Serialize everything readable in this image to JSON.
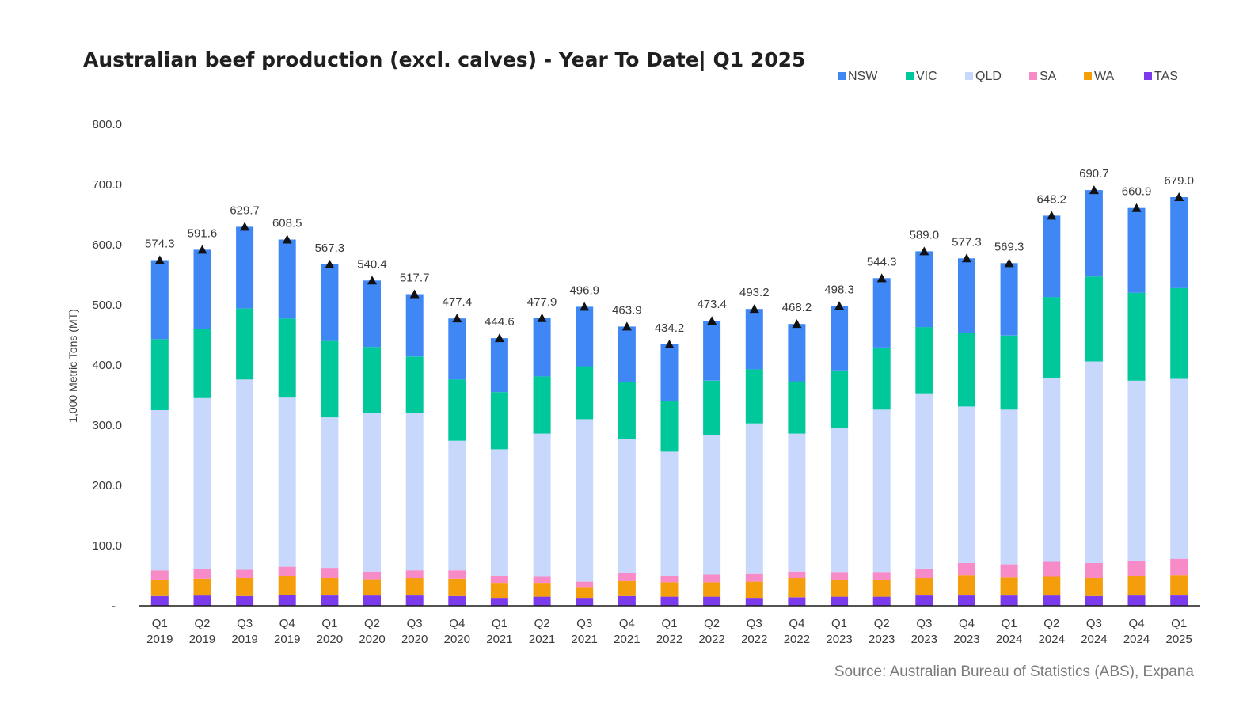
{
  "chart_data": {
    "type": "bar",
    "stacked": true,
    "title": "Australian  beef production (excl. calves)  - Year To Date| Q1 2025",
    "ylabel": "1,000 Metric Tons (MT)",
    "ylim": [
      0,
      800
    ],
    "yticks": [
      "-",
      "100.0",
      "200.0",
      "300.0",
      "400.0",
      "500.0",
      "600.0",
      "700.0",
      "800.0"
    ],
    "grid": false,
    "legend_position": "top-right",
    "categories": [
      [
        "Q1",
        "2019"
      ],
      [
        "Q2",
        "2019"
      ],
      [
        "Q3",
        "2019"
      ],
      [
        "Q4",
        "2019"
      ],
      [
        "Q1",
        "2020"
      ],
      [
        "Q2",
        "2020"
      ],
      [
        "Q3",
        "2020"
      ],
      [
        "Q4",
        "2020"
      ],
      [
        "Q1",
        "2021"
      ],
      [
        "Q2",
        "2021"
      ],
      [
        "Q3",
        "2021"
      ],
      [
        "Q4",
        "2021"
      ],
      [
        "Q1",
        "2022"
      ],
      [
        "Q2",
        "2022"
      ],
      [
        "Q3",
        "2022"
      ],
      [
        "Q4",
        "2022"
      ],
      [
        "Q1",
        "2023"
      ],
      [
        "Q2",
        "2023"
      ],
      [
        "Q3",
        "2023"
      ],
      [
        "Q4",
        "2023"
      ],
      [
        "Q1",
        "2024"
      ],
      [
        "Q2",
        "2024"
      ],
      [
        "Q3",
        "2024"
      ],
      [
        "Q4",
        "2024"
      ],
      [
        "Q1",
        "2025"
      ]
    ],
    "series": [
      {
        "name": "TAS",
        "color": "#7c3aed",
        "values": [
          16,
          17,
          16,
          18,
          17,
          17,
          17,
          16,
          13,
          15,
          13,
          16,
          15,
          15,
          13,
          14,
          15,
          15,
          17,
          17,
          17,
          17,
          16,
          17,
          17
        ]
      },
      {
        "name": "WA",
        "color": "#f59e0b",
        "values": [
          27,
          28,
          30,
          31,
          29,
          27,
          29,
          29,
          25,
          23,
          18,
          25,
          24,
          24,
          27,
          32,
          28,
          28,
          29,
          34,
          30,
          31,
          30,
          33,
          34
        ]
      },
      {
        "name": "SA",
        "color": "#f68bc7",
        "values": [
          16,
          16,
          14,
          16,
          17,
          13,
          13,
          14,
          12,
          10,
          9,
          13,
          11,
          13,
          13,
          11,
          12,
          12,
          16,
          20,
          22,
          25,
          25,
          24,
          27
        ]
      },
      {
        "name": "QLD",
        "color": "#c7d8fc",
        "values": [
          266,
          284,
          316,
          281,
          250,
          263,
          262,
          215,
          210,
          238,
          270,
          223,
          206,
          231,
          250,
          229,
          241,
          271,
          291,
          260,
          257,
          305,
          335,
          300,
          299
        ]
      },
      {
        "name": "VIC",
        "color": "#00c89b",
        "values": [
          118,
          115,
          118,
          131,
          127,
          110,
          93,
          102,
          95,
          95,
          88,
          94,
          84,
          91,
          90,
          87,
          95,
          103,
          110,
          122,
          123,
          135,
          141,
          146,
          151
        ]
      },
      {
        "name": "NSW",
        "color": "#3f87f5",
        "values": [
          131.3,
          131.6,
          135.7,
          131.5,
          127.3,
          110.4,
          103.7,
          101.4,
          89.6,
          96.9,
          98.9,
          92.9,
          94.2,
          99.4,
          100.2,
          95.2,
          107.3,
          115.3,
          126.0,
          124.3,
          120.3,
          135.2,
          143.7,
          140.9,
          151.0
        ]
      }
    ],
    "totals": [
      574.3,
      591.6,
      629.7,
      608.5,
      567.3,
      540.4,
      517.7,
      477.4,
      444.6,
      477.9,
      496.9,
      463.9,
      434.2,
      473.4,
      493.2,
      468.2,
      498.3,
      544.3,
      589.0,
      577.3,
      569.3,
      648.2,
      690.7,
      660.9,
      679.0
    ],
    "total_labels": [
      "574.3",
      "591.6",
      "629.7",
      "608.5",
      "567.3",
      "540.4",
      "517.7",
      "477.4",
      "444.6",
      "477.9",
      "496.9",
      "463.9",
      "434.2",
      "473.4",
      "493.2",
      "468.2",
      "498.3",
      "544.3",
      "589.0",
      "577.3",
      "569.3",
      "648.2",
      "690.7",
      "660.9",
      "679.0"
    ],
    "legend": [
      {
        "name": "NSW",
        "color": "#3f87f5"
      },
      {
        "name": "VIC",
        "color": "#00c89b"
      },
      {
        "name": "QLD",
        "color": "#c7d8fc"
      },
      {
        "name": "SA",
        "color": "#f68bc7"
      },
      {
        "name": "WA",
        "color": "#f59e0b"
      },
      {
        "name": "TAS",
        "color": "#7c3aed"
      }
    ]
  },
  "source": "Source: Australian Bureau of Statistics (ABS), Expana"
}
